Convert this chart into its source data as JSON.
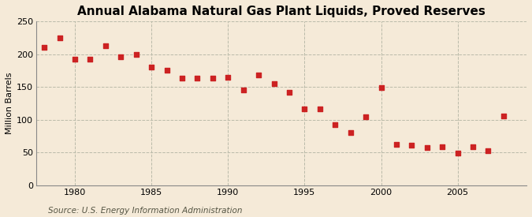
{
  "title": "Annual Alabama Natural Gas Plant Liquids, Proved Reserves",
  "ylabel": "Million Barrels",
  "source": "Source: U.S. Energy Information Administration",
  "years": [
    1978,
    1979,
    1980,
    1981,
    1982,
    1983,
    1984,
    1985,
    1986,
    1987,
    1988,
    1989,
    1990,
    1991,
    1992,
    1993,
    1994,
    1995,
    1996,
    1997,
    1998,
    1999,
    2000,
    2001,
    2002,
    2003,
    2004,
    2005,
    2006,
    2007,
    2008
  ],
  "values": [
    210,
    225,
    192,
    193,
    213,
    196,
    200,
    180,
    175,
    164,
    163,
    164,
    165,
    145,
    168,
    155,
    142,
    117,
    116,
    93,
    80,
    105,
    149,
    62,
    61,
    57,
    59,
    49,
    59,
    53,
    106
  ],
  "xlim": [
    1977.5,
    2009.5
  ],
  "ylim": [
    0,
    250
  ],
  "yticks": [
    0,
    50,
    100,
    150,
    200,
    250
  ],
  "xticks": [
    1980,
    1985,
    1990,
    1995,
    2000,
    2005
  ],
  "marker_color": "#cc2222",
  "marker": "s",
  "marker_size": 5,
  "bg_color": "#f5ead8",
  "grid_color": "#bbbbaa",
  "title_fontsize": 11,
  "label_fontsize": 8,
  "tick_fontsize": 8,
  "source_fontsize": 7.5
}
